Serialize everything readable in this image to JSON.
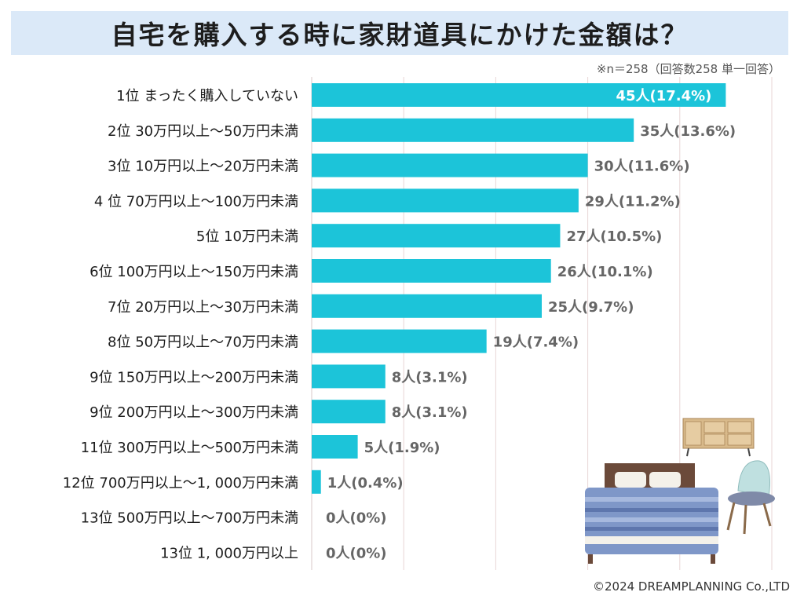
{
  "title": "自宅を購入する時に家財道具にかけた金額は？",
  "note": "※n＝258（回答数258 単一回答）",
  "copyright": "©2024 DREAMPLANNING Co.,LTD",
  "colors": {
    "bar": "#1cc4d9",
    "title_bg": "#dbe9f8",
    "grid": "#e8d6d6"
  },
  "chart_data": {
    "type": "bar",
    "orientation": "horizontal",
    "title": "自宅を購入する時に家財道具にかけた金額は？",
    "xlim": [
      0,
      50
    ],
    "grid": true,
    "categories": [
      "1位  まったく購入していない",
      "2位  30万円以上～50万円未満",
      "3位  10万円以上～20万円未満",
      "4 位  70万円以上～100万円未満",
      "5位  10万円未満",
      "6位  100万円以上～150万円未満",
      "7位  20万円以上～30万円未満",
      "8位  50万円以上～70万円未満",
      "9位  150万円以上～200万円未満",
      "9位  200万円以上～300万円未満",
      "11位  300万円以上～500万円未満",
      "12位  700万円以上～1, 000万円未満",
      "13位  500万円以上～700万円未満",
      "13位  1, 000万円以上"
    ],
    "values": [
      45,
      35,
      30,
      29,
      27,
      26,
      25,
      19,
      8,
      8,
      5,
      1,
      0,
      0
    ],
    "labels": [
      "45人(17.4%)",
      "35人(13.6%)",
      "30人(11.6%)",
      "29人(11.2%)",
      "27人(10.5%)",
      "26人(10.1%)",
      "25人(9.7%)",
      "19人(7.4%)",
      "8人(3.1%)",
      "8人(3.1%)",
      "5人(1.9%)",
      "1人(0.4%)",
      "0人(0%)",
      "0人(0%)"
    ]
  }
}
